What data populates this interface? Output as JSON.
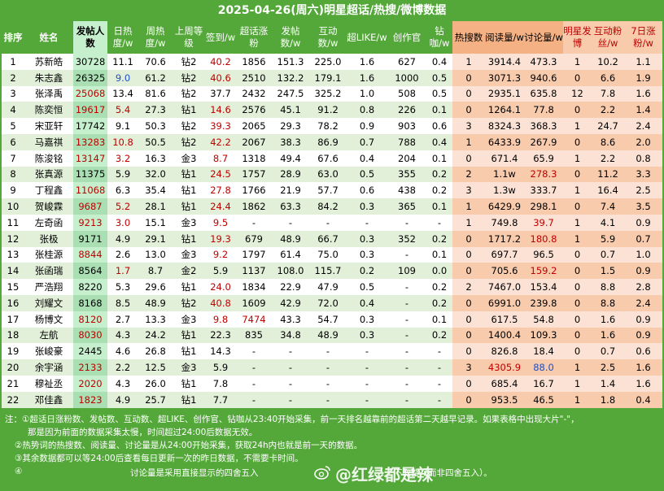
{
  "title": "2025-04-26(周六)明星超话/热搜/微博数据",
  "headers": [
    "排序",
    "姓名",
    "发帖人数",
    "日热度/w",
    "周热度/w",
    "上周等级",
    "签到/w",
    "超话涨粉",
    "发帖数/w",
    "互动数/w",
    "超LIKE/w",
    "创作官",
    "钻咖/w",
    "热搜数",
    "阅读量/w",
    "讨论量/w",
    "明星发博",
    "互动粉丝/w",
    "7日涨粉/w"
  ],
  "rows": [
    [
      "1",
      "苏新皓",
      "30728",
      "11.1",
      "70.6",
      "钻2",
      "40.2",
      "1856",
      "151.3",
      "225.0",
      "1.6",
      "627",
      "0.4",
      "1",
      "3914.4",
      "473.3",
      "1",
      "10.2",
      "1.1"
    ],
    [
      "2",
      "朱志鑫",
      "26325",
      "9.0",
      "61.2",
      "钻2",
      "40.6",
      "2510",
      "132.2",
      "179.1",
      "1.6",
      "1000",
      "0.5",
      "0",
      "3071.3",
      "940.6",
      "0",
      "6.6",
      "1.9"
    ],
    [
      "3",
      "张泽禹",
      "25068",
      "13.4",
      "81.6",
      "钻2",
      "37.7",
      "2432",
      "247.5",
      "325.2",
      "1.0",
      "508",
      "0.5",
      "0",
      "2935.1",
      "635.8",
      "12",
      "7.8",
      "1.6"
    ],
    [
      "4",
      "陈奕恒",
      "19617",
      "5.4",
      "27.3",
      "钻1",
      "14.6",
      "2576",
      "45.1",
      "91.2",
      "0.8",
      "226",
      "0.1",
      "0",
      "1264.1",
      "77.8",
      "0",
      "2.2",
      "1.4"
    ],
    [
      "5",
      "宋亚轩",
      "17742",
      "9.1",
      "50.3",
      "钻2",
      "39.3",
      "2065",
      "29.3",
      "78.2",
      "0.9",
      "903",
      "0.6",
      "3",
      "8324.3",
      "368.3",
      "1",
      "24.7",
      "2.4"
    ],
    [
      "6",
      "马嘉祺",
      "13283",
      "10.8",
      "50.5",
      "钻2",
      "42.2",
      "2067",
      "38.3",
      "86.9",
      "0.7",
      "788",
      "0.4",
      "1",
      "6433.9",
      "267.9",
      "0",
      "8.6",
      "2.0"
    ],
    [
      "7",
      "陈浚铭",
      "13147",
      "3.2",
      "16.3",
      "金3",
      "8.7",
      "1318",
      "49.4",
      "67.6",
      "0.4",
      "204",
      "0.1",
      "0",
      "671.4",
      "65.9",
      "1",
      "2.2",
      "0.8"
    ],
    [
      "8",
      "张真源",
      "11375",
      "5.9",
      "32.0",
      "钻1",
      "24.5",
      "1757",
      "28.9",
      "63.0",
      "0.5",
      "355",
      "0.2",
      "2",
      "1.1w",
      "278.3",
      "0",
      "11.2",
      "3.3"
    ],
    [
      "9",
      "丁程鑫",
      "11068",
      "6.3",
      "35.4",
      "钻1",
      "27.8",
      "1766",
      "21.9",
      "57.7",
      "0.6",
      "438",
      "0.2",
      "3",
      "1.3w",
      "333.7",
      "1",
      "16.4",
      "2.5"
    ],
    [
      "10",
      "贺峻霖",
      "9687",
      "5.2",
      "28.1",
      "钻1",
      "24.4",
      "1862",
      "63.3",
      "84.2",
      "0.3",
      "365",
      "0.1",
      "1",
      "6429.9",
      "298.1",
      "0",
      "7.4",
      "3.5"
    ],
    [
      "11",
      "左奇函",
      "9213",
      "3.0",
      "15.1",
      "金3",
      "9.5",
      "-",
      "-",
      "-",
      "-",
      "-",
      "-",
      "1",
      "749.8",
      "39.7",
      "1",
      "4.1",
      "0.9"
    ],
    [
      "12",
      "张极",
      "9171",
      "4.9",
      "29.1",
      "钻1",
      "19.3",
      "679",
      "48.9",
      "66.7",
      "0.3",
      "352",
      "0.2",
      "0",
      "1717.2",
      "180.8",
      "1",
      "5.9",
      "0.7"
    ],
    [
      "13",
      "张桂源",
      "8844",
      "2.6",
      "13.0",
      "金3",
      "9.2",
      "1797",
      "61.4",
      "75.0",
      "0.3",
      "-",
      "0.1",
      "0",
      "697.7",
      "96.5",
      "0",
      "0.7",
      "1.0"
    ],
    [
      "14",
      "张函瑞",
      "8564",
      "1.7",
      "8.7",
      "金2",
      "5.9",
      "1137",
      "108.0",
      "115.7",
      "0.2",
      "109",
      "0.0",
      "0",
      "705.6",
      "159.2",
      "0",
      "1.5",
      "0.9"
    ],
    [
      "15",
      "严浩翔",
      "8220",
      "5.3",
      "29.6",
      "钻1",
      "24.0",
      "1834",
      "22.9",
      "47.9",
      "0.5",
      "-",
      "0.2",
      "2",
      "7467.0",
      "153.4",
      "0",
      "8.8",
      "2.8"
    ],
    [
      "16",
      "刘耀文",
      "8168",
      "8.5",
      "48.9",
      "钻2",
      "40.8",
      "1609",
      "42.9",
      "72.0",
      "0.4",
      "-",
      "0.2",
      "0",
      "6991.0",
      "239.8",
      "0",
      "8.8",
      "2.4"
    ],
    [
      "17",
      "杨博文",
      "8120",
      "2.7",
      "13.3",
      "金3",
      "9.8",
      "7474",
      "43.3",
      "54.7",
      "0.3",
      "-",
      "0.1",
      "0",
      "617.5",
      "54.8",
      "0",
      "1.6",
      "0.9"
    ],
    [
      "18",
      "左航",
      "8030",
      "4.3",
      "24.2",
      "钻1",
      "22.3",
      "835",
      "34.8",
      "48.9",
      "0.3",
      "-",
      "0.2",
      "0",
      "1400.4",
      "109.3",
      "0",
      "1.6",
      "0.9"
    ],
    [
      "19",
      "张峻豪",
      "2445",
      "4.6",
      "26.8",
      "钻1",
      "14.3",
      "-",
      "-",
      "-",
      "-",
      "-",
      "-",
      "0",
      "826.8",
      "18.4",
      "0",
      "0.7",
      "0.6"
    ],
    [
      "20",
      "余宇涵",
      "2133",
      "2.2",
      "12.5",
      "金3",
      "5.9",
      "-",
      "-",
      "-",
      "-",
      "-",
      "-",
      "3",
      "4305.9",
      "88.0",
      "1",
      "2.5",
      "1.6"
    ],
    [
      "21",
      "穆祉丞",
      "2020",
      "4.3",
      "26.0",
      "钻1",
      "7.8",
      "-",
      "-",
      "-",
      "-",
      "-",
      "-",
      "0",
      "685.4",
      "16.7",
      "1",
      "1.4",
      "1.6"
    ],
    [
      "22",
      "邓佳鑫",
      "1823",
      "4.9",
      "25.7",
      "钻1",
      "7.7",
      "-",
      "-",
      "-",
      "-",
      "-",
      "-",
      "0",
      "953.5",
      "46.5",
      "1",
      "1.8",
      "0.4"
    ]
  ],
  "notes": [
    "注：①超话日涨粉数、发帖数、互动数、超LIKE、创作官、钻咖从23:40开始采集，前一天排名越靠前的超话第二天越早记录。如果表格中出现大片\"-\"，",
    "那是因为前面的数据采集太慢，时间超过24:00后数据无效。",
    "②热势词的热搜数、阅读量、讨论量是从24:00开始采集，获取24h内也就是前一天的数据。",
    "③其余数据都可以等24:00后查看每日更新一次的昨日数据，不需要卡时间。",
    "④",
    "讨论量是采用直接显示的四舍五入",
    "下取整（而非四舍五入）。"
  ],
  "watermark": "@红绿都是辣",
  "colors": {
    "bg_green": "#54a83a",
    "red": "#c00000",
    "blue": "#1f4fc9",
    "pink_header": "#f8cbad",
    "light_green": "#e2f0d9"
  }
}
